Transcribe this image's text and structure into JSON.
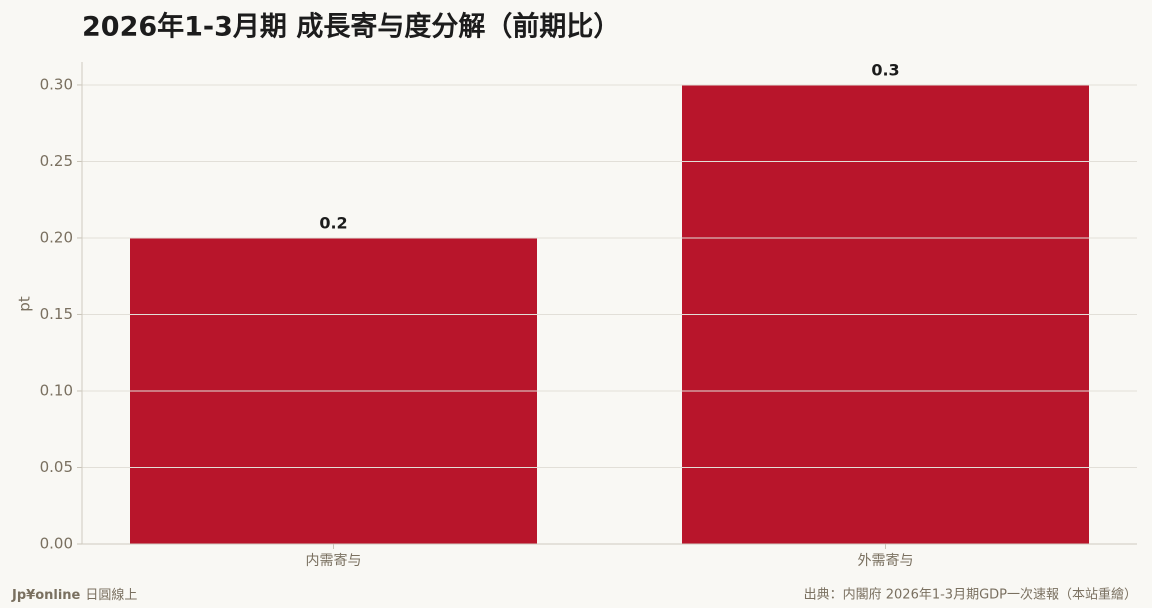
{
  "chart_data": {
    "type": "bar",
    "title": "2026年1-3月期 成長寄与度分解（前期比）",
    "y_label": "pt",
    "categories": [
      "内需寄与",
      "外需寄与"
    ],
    "values": [
      0.2,
      0.3
    ],
    "color": "#b8152b",
    "ylim": [
      0,
      0.315
    ],
    "yticks": [
      {
        "value": 0,
        "label": "0.00"
      },
      {
        "value": 0.05,
        "label": "0.05"
      },
      {
        "value": 0.1,
        "label": "0.10"
      },
      {
        "value": 0.15,
        "label": "0.15"
      },
      {
        "value": 0.2,
        "label": "0.20"
      },
      {
        "value": 0.25,
        "label": "0.25"
      },
      {
        "value": 0.3,
        "label": "0.30"
      }
    ],
    "grid": true,
    "brand": "Jp¥online",
    "brand_sub": "日圓線上",
    "source": "出典：内閣府 2026年1-3月期GDP一次速報（本站重繪）"
  }
}
